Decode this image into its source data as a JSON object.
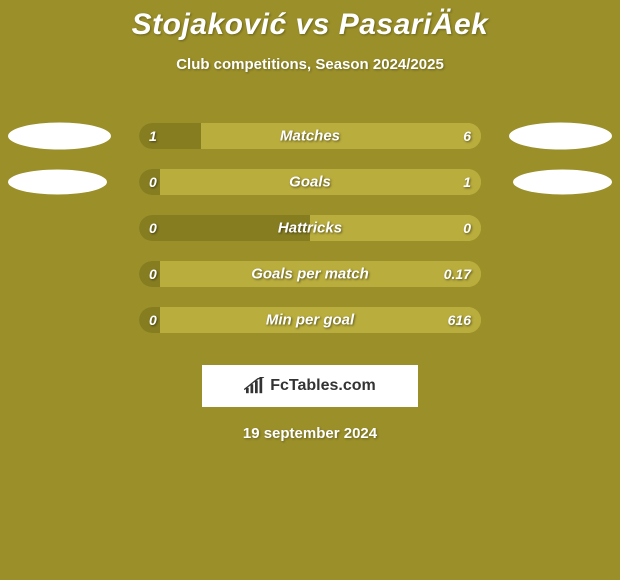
{
  "title": "Stojaković vs PasariÄek",
  "subtitle": "Club competitions, Season 2024/2025",
  "date": "19 september 2024",
  "colors": {
    "background": "#9a8f29",
    "bar_left": "#867d21",
    "bar_right": "#b9ad3d",
    "ellipse": "#ffffff",
    "text": "#ffffff"
  },
  "logo": {
    "text": "FcTables.com",
    "icon_color": "#333333"
  },
  "bar_track_width": 342,
  "bar_track_height": 26,
  "ellipse_sizes": {
    "row0": {
      "left_w": 103,
      "left_h": 27,
      "right_w": 103,
      "right_h": 27
    },
    "row1": {
      "left_w": 99,
      "left_h": 25,
      "right_w": 99,
      "right_h": 25
    }
  },
  "rows": [
    {
      "label": "Matches",
      "left_val": "1",
      "right_val": "6",
      "left_pct": 18,
      "right_pct": 82,
      "show_ellipses": true,
      "ellipse_key": "row0"
    },
    {
      "label": "Goals",
      "left_val": "0",
      "right_val": "1",
      "left_pct": 6,
      "right_pct": 94,
      "show_ellipses": true,
      "ellipse_key": "row1"
    },
    {
      "label": "Hattricks",
      "left_val": "0",
      "right_val": "0",
      "left_pct": 50,
      "right_pct": 50,
      "show_ellipses": false
    },
    {
      "label": "Goals per match",
      "left_val": "0",
      "right_val": "0.17",
      "left_pct": 6,
      "right_pct": 94,
      "show_ellipses": false
    },
    {
      "label": "Min per goal",
      "left_val": "0",
      "right_val": "616",
      "left_pct": 6,
      "right_pct": 94,
      "show_ellipses": false
    }
  ]
}
